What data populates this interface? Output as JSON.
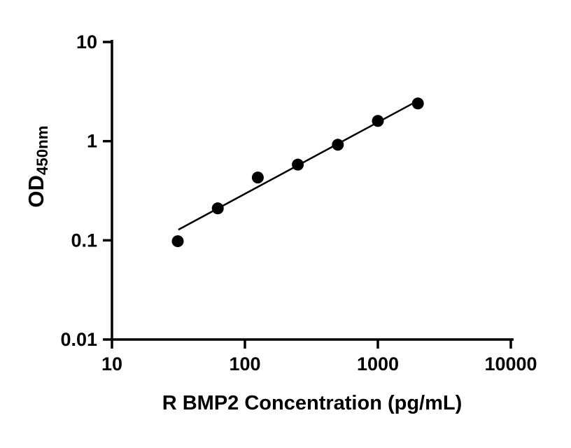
{
  "page": {
    "background": "#ffffff"
  },
  "chart_data": {
    "type": "scatter",
    "title": "",
    "xlabel": "R BMP2 Concentration (pg/mL)",
    "ylabel_main": "OD",
    "ylabel_sub": "450nm",
    "x_scale": "log",
    "y_scale": "log",
    "xlim": [
      10,
      10000
    ],
    "ylim": [
      0.01,
      10
    ],
    "x_ticks": [
      10,
      100,
      1000,
      10000
    ],
    "x_tick_labels": [
      "10",
      "100",
      "1000",
      "10000"
    ],
    "y_ticks": [
      0.01,
      0.1,
      1,
      10
    ],
    "y_tick_labels": [
      "0.01",
      "0.1",
      "1",
      "10"
    ],
    "grid": false,
    "legend": "none",
    "points": [
      {
        "x": 31.25,
        "y": 0.098
      },
      {
        "x": 62.5,
        "y": 0.21
      },
      {
        "x": 125,
        "y": 0.43
      },
      {
        "x": 250,
        "y": 0.58
      },
      {
        "x": 500,
        "y": 0.92
      },
      {
        "x": 1000,
        "y": 1.6
      },
      {
        "x": 2000,
        "y": 2.4
      }
    ],
    "trend_line": {
      "x1": 31.6,
      "y1": 0.128,
      "x2": 1990,
      "y2": 2.55
    },
    "marker_color": "#000000",
    "marker_radius": 8.5,
    "line_color": "#000000",
    "line_width": 2.5,
    "axis_color": "#000000",
    "axis_width": 3.5
  }
}
